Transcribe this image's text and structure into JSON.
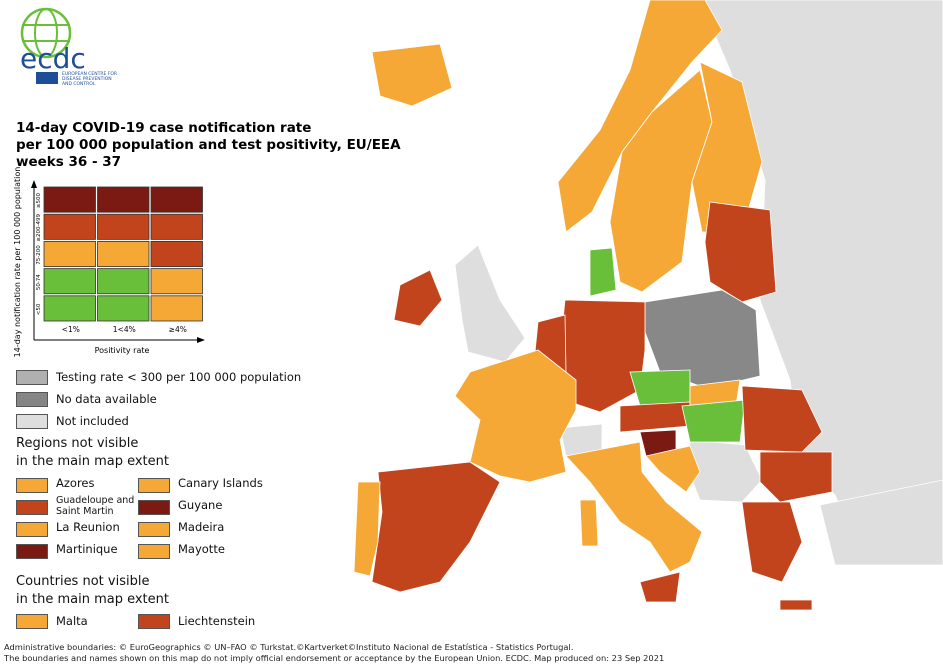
{
  "logo": {
    "name": "ecdc",
    "subtitle": [
      "EUROPEAN CENTRE FOR",
      "DISEASE PREVENTION",
      "AND CONTROL"
    ]
  },
  "title": [
    "14-day COVID-19 case notification rate",
    "per 100 000 population and test positivity, EU/EEA",
    "weeks 36 - 37"
  ],
  "matrix": {
    "y_label": "14-day notification rate per 100 000 population",
    "x_label": "Positivity rate",
    "rows": [
      "≥500",
      "≥200-499",
      "75-200",
      "50-74",
      "<50"
    ],
    "columns": [
      "<1%",
      "1<4%",
      "≥4%"
    ],
    "cells": [
      [
        "#7b1a12",
        "#7b1a12",
        "#7b1a12"
      ],
      [
        "#c1441d",
        "#c1441d",
        "#c1441d"
      ],
      [
        "#f5a836",
        "#f5a836",
        "#c1441d"
      ],
      [
        "#6abf3a",
        "#6abf3a",
        "#f5a836"
      ],
      [
        "#6abf3a",
        "#6abf3a",
        "#f5a836"
      ]
    ]
  },
  "status_legend": [
    {
      "label": "Testing rate < 300 per 100 000 population",
      "color": "#b0b0b0"
    },
    {
      "label": "No data available",
      "color": "#858585"
    },
    {
      "label": "Not included",
      "color": "#dedede"
    }
  ],
  "regions": {
    "title": [
      "Regions not visible",
      "in the main map extent"
    ],
    "items": [
      {
        "label": "Azores",
        "color": "#f5a836"
      },
      {
        "label": "Guadeloupe and Saint Martin",
        "color": "#c1441d"
      },
      {
        "label": "La Reunion",
        "color": "#f5a836"
      },
      {
        "label": "Martinique",
        "color": "#7b1a12"
      },
      {
        "label": "Canary Islands",
        "color": "#f5a836"
      },
      {
        "label": "Guyane",
        "color": "#7b1a12"
      },
      {
        "label": "Madeira",
        "color": "#f5a836"
      },
      {
        "label": "Mayotte",
        "color": "#f5a836"
      }
    ]
  },
  "countries": {
    "title": [
      "Countries not visible",
      "in the main map extent"
    ],
    "items": [
      {
        "label": "Malta",
        "color": "#f5a836"
      },
      {
        "label": "Liechtenstein",
        "color": "#c1441d"
      }
    ]
  },
  "footer": [
    "Administrative boundaries: © EuroGeographics © UN–FAO © Turkstat.©Kartverket©Instituto Nacional de Estatística - Statistics Portugal.",
    "The boundaries and names shown on this map do not imply official endorsement or acceptance by the European Union. ECDC. Map produced on: 23 Sep 2021"
  ]
}
